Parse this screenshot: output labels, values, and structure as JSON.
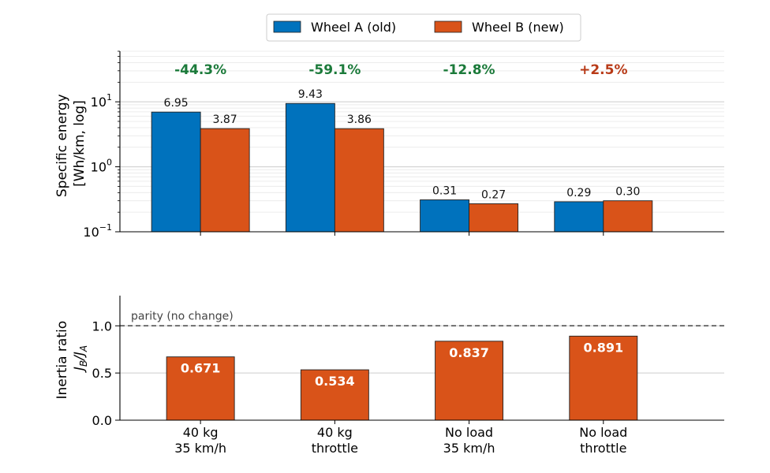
{
  "chart_data": [
    {
      "type": "bar",
      "yscale": "log",
      "ylabel_line1": "Specific energy",
      "ylabel_line2": "[Wh/km, log]",
      "ylim": [
        0.1,
        60
      ],
      "yticks": [
        {
          "value": 0.1,
          "base": "10",
          "exp": "−1"
        },
        {
          "value": 1,
          "base": "10",
          "exp": "0"
        },
        {
          "value": 10,
          "base": "10",
          "exp": "1"
        }
      ],
      "grid": true,
      "legend_position": "top-center",
      "categories": [
        "40 kg 35 km/h",
        "40 kg throttle",
        "No load 35 km/h",
        "No load throttle"
      ],
      "series": [
        {
          "name": "Wheel A (old)",
          "color": "#0072bd",
          "values": [
            6.95,
            9.43,
            0.31,
            0.29
          ],
          "labels": [
            "6.95",
            "9.43",
            "0.31",
            "0.29"
          ]
        },
        {
          "name": "Wheel B (new)",
          "color": "#d95319",
          "values": [
            3.87,
            3.86,
            0.27,
            0.3
          ],
          "labels": [
            "3.87",
            "3.86",
            "0.27",
            "0.30"
          ]
        }
      ],
      "annotations": [
        {
          "text": "-44.3%",
          "color": "#1b7a3a"
        },
        {
          "text": "-59.1%",
          "color": "#1b7a3a"
        },
        {
          "text": "-12.8%",
          "color": "#1b7a3a"
        },
        {
          "text": "+2.5%",
          "color": "#b83a17"
        }
      ]
    },
    {
      "type": "bar",
      "ylabel_line1": "Inertia ratio",
      "ylabel_line2_base": "J",
      "ylabel_line2_sub_b": "B",
      "ylabel_line2_slash": "/J",
      "ylabel_line2_sub_a": "A",
      "ylim": [
        0,
        1.32
      ],
      "yticks": [
        {
          "value": 0,
          "label": "0.0"
        },
        {
          "value": 0.5,
          "label": "0.5"
        },
        {
          "value": 1,
          "label": "1.0"
        }
      ],
      "grid": true,
      "categories": [
        "40 kg 35 km/h",
        "40 kg throttle",
        "No load 35 km/h",
        "No load throttle"
      ],
      "xtick_lines": [
        [
          "40 kg",
          "35 km/h"
        ],
        [
          "40 kg",
          "throttle"
        ],
        [
          "No load",
          "35 km/h"
        ],
        [
          "No load",
          "throttle"
        ]
      ],
      "values": [
        0.671,
        0.534,
        0.837,
        0.891
      ],
      "labels": [
        "0.671",
        "0.534",
        "0.837",
        "0.891"
      ],
      "color": "#d95319",
      "reference_line": {
        "value": 1.0,
        "label": "parity (no change)"
      }
    }
  ]
}
